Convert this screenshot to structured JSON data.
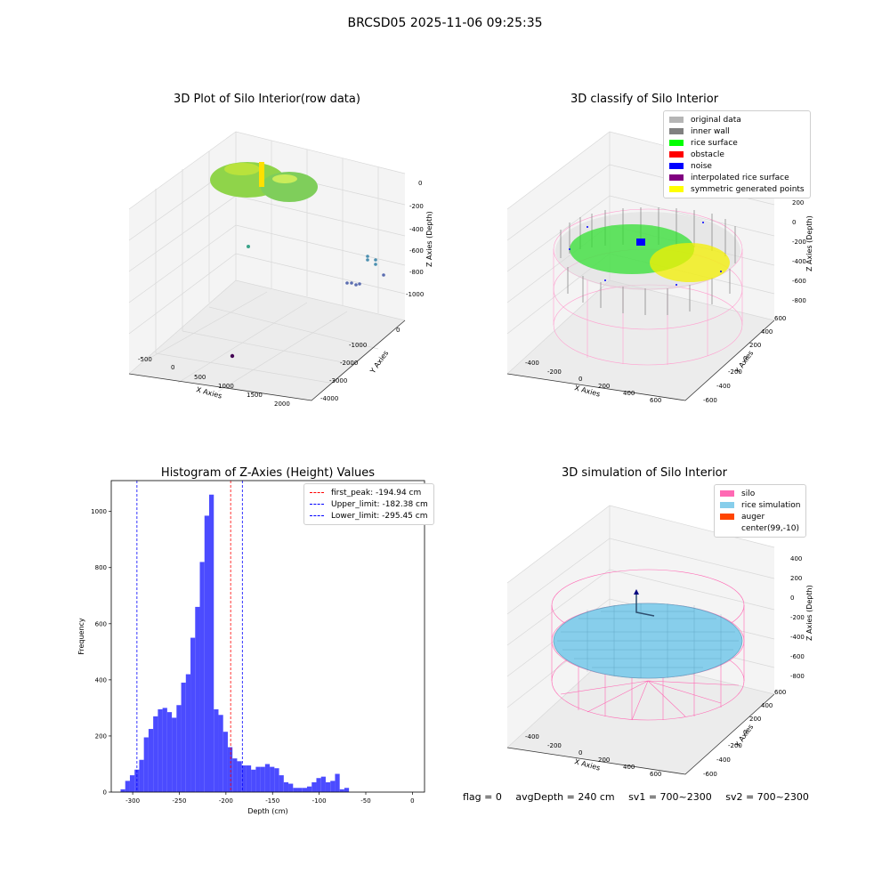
{
  "figure": {
    "title": "BRCSD05 2025-11-06 09:25:35"
  },
  "panels": {
    "raw": {
      "title": "3D Plot of Silo Interior(row data)",
      "xlabel": "X Axies",
      "ylabel": "Y Axies",
      "zlabel": "Z Axies (Depth)",
      "xticks": [
        "-500",
        "0",
        "500",
        "1000",
        "1500",
        "2000"
      ],
      "yticks": [
        "0",
        "-1000",
        "-2000",
        "-3000",
        "-4000"
      ],
      "zticks": [
        "0",
        "-200",
        "-400",
        "-600",
        "-800",
        "-1000"
      ]
    },
    "classify": {
      "title": "3D classify of Silo Interior",
      "xlabel": "X Axies",
      "ylabel": "Y Axies",
      "zlabel": "Z Axies (Depth)",
      "xticks": [
        "-400",
        "-200",
        "0",
        "200",
        "400",
        "600"
      ],
      "yticks": [
        "600",
        "400",
        "200",
        "0",
        "-200",
        "-400",
        "-600"
      ],
      "zticks": [
        "400",
        "200",
        "0",
        "-200",
        "-400",
        "-600",
        "-800"
      ],
      "legend": [
        {
          "label": "original data",
          "color": "#b5b5b5"
        },
        {
          "label": "inner wall",
          "color": "#808080"
        },
        {
          "label": "rice surface",
          "color": "#00ff00"
        },
        {
          "label": "obstacle",
          "color": "#ff0000"
        },
        {
          "label": "noise",
          "color": "#0000ff"
        },
        {
          "label": "interpolated rice surface",
          "color": "#800080"
        },
        {
          "label": "symmetric generated points",
          "color": "#ffff00"
        }
      ]
    },
    "simulation": {
      "title": "3D simulation of Silo Interior",
      "xlabel": "X Axies",
      "ylabel": "Y Axies",
      "zlabel": "Z Axies (Depth)",
      "xticks": [
        "-400",
        "-200",
        "0",
        "200",
        "400",
        "600"
      ],
      "yticks": [
        "600",
        "400",
        "200",
        "0",
        "-200",
        "-400",
        "-600"
      ],
      "zticks": [
        "400",
        "200",
        "0",
        "-200",
        "-400",
        "-600",
        "-800"
      ],
      "legend": [
        {
          "label": "silo",
          "color": "#ff69b4"
        },
        {
          "label": "rice simulation",
          "color": "#87ceeb"
        },
        {
          "label": "auger",
          "color": "#ff4500"
        },
        {
          "label": "center(99,-10)",
          "color": ""
        }
      ]
    }
  },
  "status": {
    "flag": "flag = 0",
    "avg": "avgDepth = 240 cm",
    "sv1": "sv1 = 700~2300",
    "sv2": "sv2 = 700~2300"
  },
  "chart_data": [
    {
      "type": "bar",
      "title": "Histogram of Z-Axies (Height) Values",
      "xlabel": "Depth (cm)",
      "ylabel": "Frequency",
      "xlim": [
        -323,
        13
      ],
      "ylim": [
        0,
        1110
      ],
      "xticks": [
        -300,
        -250,
        -200,
        -150,
        -100,
        -50,
        0
      ],
      "yticks": [
        0,
        200,
        400,
        600,
        800,
        1000
      ],
      "bin_start": -313,
      "bin_width": 5,
      "values": [
        10,
        40,
        60,
        80,
        115,
        195,
        225,
        270,
        295,
        300,
        285,
        265,
        310,
        390,
        420,
        550,
        660,
        820,
        985,
        1060,
        295,
        275,
        215,
        160,
        120,
        110,
        95,
        95,
        80,
        90,
        90,
        100,
        90,
        85,
        60,
        35,
        30,
        15,
        15,
        15,
        20,
        35,
        50,
        55,
        35,
        40,
        65,
        10,
        15
      ],
      "lines": [
        {
          "label": "first_peak: -194.94 cm",
          "x": -194.94,
          "color": "#ff0000"
        },
        {
          "label": "Upper_limit: -182.38 cm",
          "x": -182.38,
          "color": "#0000ff"
        },
        {
          "label": "Lower_limit: -295.45 cm",
          "x": -295.45,
          "color": "#0000ff"
        }
      ],
      "bar_color": "#4b4bff",
      "grid": false,
      "legend_position": "top-right"
    }
  ]
}
